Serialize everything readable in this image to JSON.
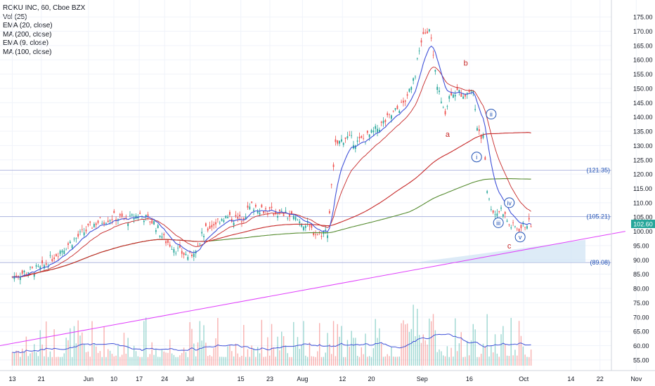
{
  "legend": {
    "symbol": "ROKU INC, 60, Cboe BZX",
    "vol": "Vol (25)",
    "ema20": "EMA (20, close)",
    "ma200": "MA (200, close)",
    "ema9": "EMA (9, close)",
    "ma100": "MA (100, close)"
  },
  "colors": {
    "up": "#26a69a",
    "down": "#ef5350",
    "ema9": "#3f51d8",
    "ema20": "#c62828",
    "ma200": "#558b2f",
    "ma100": "#3f51d8",
    "trendline": "#e040fb",
    "wave_red": "#c62828",
    "wave_blue": "#1e50b4",
    "hline": "#9fa8da",
    "zone": "#cfe2f3"
  },
  "chart_data": {
    "type": "candlestick",
    "ylim": [
      53,
      177
    ],
    "y_ticks": [
      "175.00",
      "170.00",
      "165.00",
      "160.00",
      "155.00",
      "150.00",
      "145.00",
      "140.00",
      "135.00",
      "130.00",
      "125.00",
      "120.00",
      "115.00",
      "110.00",
      "105.00",
      "100.00",
      "95.00",
      "90.00",
      "85.00",
      "80.00",
      "75.00",
      "70.00",
      "65.00",
      "60.00",
      "55.00"
    ],
    "x_ticks": [
      "13",
      "21",
      "Jun",
      "10",
      "17",
      "24",
      "Jul",
      "15",
      "23",
      "Aug",
      "12",
      "20",
      "Sep",
      "16",
      "Oct",
      "14",
      "22",
      "Nov"
    ],
    "last_price": "102.60",
    "horizontal_levels": [
      {
        "label": "(121.35)",
        "value": 121.35
      },
      {
        "label": "(105.21)",
        "value": 105.21
      },
      {
        "label": "(89.08)",
        "value": 89.08
      }
    ],
    "price_path": [
      [
        "2019-05-13",
        84
      ],
      [
        "2019-05-17",
        86
      ],
      [
        "2019-05-21",
        87
      ],
      [
        "2019-05-25",
        92
      ],
      [
        "2019-05-28",
        95
      ],
      [
        "2019-06-01",
        99
      ],
      [
        "2019-06-05",
        103
      ],
      [
        "2019-06-10",
        105
      ],
      [
        "2019-06-14",
        104
      ],
      [
        "2019-06-17",
        106
      ],
      [
        "2019-06-21",
        103
      ],
      [
        "2019-06-24",
        97
      ],
      [
        "2019-06-28",
        93
      ],
      [
        "2019-07-01",
        91
      ],
      [
        "2019-07-05",
        100
      ],
      [
        "2019-07-10",
        105
      ],
      [
        "2019-07-15",
        104
      ],
      [
        "2019-07-18",
        109
      ],
      [
        "2019-07-23",
        107
      ],
      [
        "2019-07-27",
        106
      ],
      [
        "2019-08-01",
        103
      ],
      [
        "2019-08-05",
        99
      ],
      [
        "2019-08-08",
        100
      ],
      [
        "2019-08-10",
        130
      ],
      [
        "2019-08-13",
        133
      ],
      [
        "2019-08-16",
        131
      ],
      [
        "2019-08-20",
        134
      ],
      [
        "2019-08-25",
        140
      ],
      [
        "2019-08-29",
        145
      ],
      [
        "2019-09-01",
        155
      ],
      [
        "2019-09-03",
        168
      ],
      [
        "2019-09-05",
        172
      ],
      [
        "2019-09-07",
        152
      ],
      [
        "2019-09-09",
        141
      ],
      [
        "2019-09-11",
        149
      ],
      [
        "2019-09-15",
        148
      ],
      [
        "2019-09-17",
        150
      ],
      [
        "2019-09-18",
        137
      ],
      [
        "2019-09-20",
        132
      ],
      [
        "2019-09-21",
        112
      ],
      [
        "2019-09-23",
        106
      ],
      [
        "2019-09-25",
        108
      ],
      [
        "2019-09-27",
        102
      ],
      [
        "2019-09-30",
        101
      ],
      [
        "2019-10-02",
        103
      ],
      [
        "2019-10-03",
        102.6
      ]
    ],
    "wave_labels_red": [
      "a",
      "b",
      "c"
    ],
    "wave_labels_blue": [
      "i",
      "ii",
      "iii",
      "iv",
      "v"
    ]
  }
}
